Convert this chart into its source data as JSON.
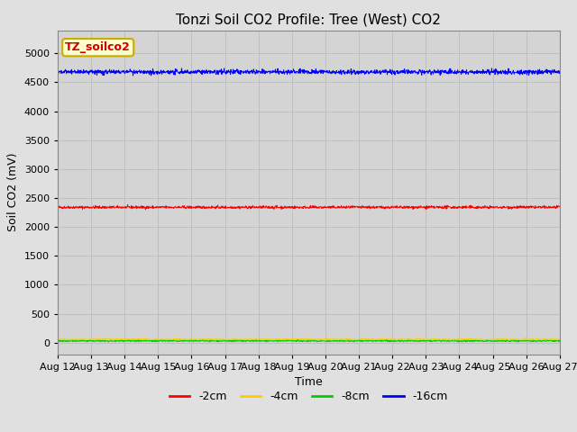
{
  "title": "Tonzi Soil CO2 Profile: Tree (West) CO2",
  "ylabel": "Soil CO2 (mV)",
  "xlabel": "Time",
  "legend_label": "TZ_soilco2",
  "x_start_day": 12,
  "x_end_day": 27,
  "x_month": "Aug",
  "x_tick_days": [
    12,
    13,
    14,
    15,
    16,
    17,
    18,
    19,
    20,
    21,
    22,
    23,
    24,
    25,
    26,
    27
  ],
  "ylim": [
    -200,
    5400
  ],
  "yticks": [
    0,
    500,
    1000,
    1500,
    2000,
    2500,
    3000,
    3500,
    4000,
    4500,
    5000
  ],
  "series": {
    "-2cm": {
      "mean": 2340,
      "noise": 12,
      "color": "#ff0000"
    },
    "-4cm": {
      "mean": 55,
      "noise": 8,
      "color": "#ffcc00"
    },
    "-8cm": {
      "mean": 30,
      "noise": 6,
      "color": "#00cc00"
    },
    "-16cm": {
      "mean": 4680,
      "noise": 20,
      "color": "#0000ff"
    }
  },
  "n_points": 1500,
  "fig_bg_color": "#e0e0e0",
  "plot_bg_color": "#d4d4d4",
  "legend_box_facecolor": "#ffffcc",
  "legend_text_color": "#cc0000",
  "legend_border_color": "#ccaa00",
  "grid_color": "#bbbbbb",
  "title_fontsize": 11,
  "axis_label_fontsize": 9,
  "tick_fontsize": 8,
  "legend_fontsize": 9
}
